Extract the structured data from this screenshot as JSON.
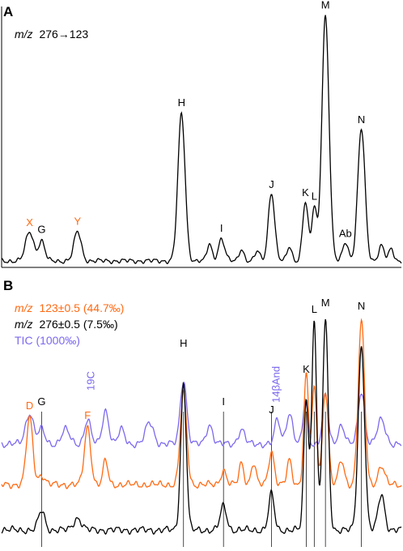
{
  "colors": {
    "black": "#000000",
    "orange": "#ff6a13",
    "purple": "#7b68ee"
  },
  "chart_data": [
    {
      "type": "line",
      "panel": "A",
      "legend": [
        {
          "prefix": "m/z",
          "text": "276→123",
          "color": "#000000"
        }
      ],
      "series": [
        {
          "color": "#000000",
          "peaks": [
            {
              "label": "X",
              "color": "#ff6a13",
              "x": 0.07,
              "h": 0.12,
              "w": 0.01
            },
            {
              "label": "G",
              "color": "#000000",
              "x": 0.1,
              "h": 0.08,
              "w": 0.008
            },
            {
              "label": "Y",
              "color": "#ff6a13",
              "x": 0.19,
              "h": 0.12,
              "w": 0.009
            },
            {
              "label": "H",
              "color": "#000000",
              "x": 0.45,
              "h": 0.6,
              "w": 0.009
            },
            {
              "label": "I",
              "color": "#000000",
              "x": 0.55,
              "h": 0.09,
              "w": 0.008
            },
            {
              "label": "J",
              "color": "#000000",
              "x": 0.675,
              "h": 0.28,
              "w": 0.008
            },
            {
              "label": "K",
              "color": "#000000",
              "x": 0.76,
              "h": 0.24,
              "w": 0.007
            },
            {
              "label": "L",
              "color": "#000000",
              "x": 0.782,
              "h": 0.22,
              "w": 0.006
            },
            {
              "label": "M",
              "color": "#000000",
              "x": 0.81,
              "h": 1.0,
              "w": 0.009
            },
            {
              "label": "Ab",
              "color": "#000000",
              "x": 0.86,
              "h": 0.08,
              "w": 0.007
            },
            {
              "label": "N",
              "color": "#000000",
              "x": 0.9,
              "h": 0.54,
              "w": 0.009
            }
          ],
          "minor": [
            {
              "x": 0.52,
              "h": 0.07,
              "w": 0.006
            },
            {
              "x": 0.6,
              "h": 0.05,
              "w": 0.006
            },
            {
              "x": 0.64,
              "h": 0.04,
              "w": 0.006
            },
            {
              "x": 0.72,
              "h": 0.06,
              "w": 0.006
            },
            {
              "x": 0.95,
              "h": 0.06,
              "w": 0.007
            },
            {
              "x": 0.975,
              "h": 0.05,
              "w": 0.006
            }
          ]
        }
      ]
    },
    {
      "type": "line",
      "panel": "B",
      "legend": [
        {
          "prefix": "m/z",
          "text": "123±0.5 (44.7‰)",
          "color": "#ff6a13"
        },
        {
          "prefix": "m/z",
          "text": "276±0.5 (7.5‰)",
          "color": "#000000"
        },
        {
          "prefix": "",
          "text": "TIC (1000‰)",
          "color": "#7b68ee"
        }
      ],
      "labels": [
        {
          "text": "D",
          "color": "#ff6a13",
          "x": 0.07
        },
        {
          "text": "G",
          "color": "#000000",
          "x": 0.1
        },
        {
          "text": "F",
          "color": "#ff6a13",
          "x": 0.215
        },
        {
          "text": "19C",
          "color": "#7b68ee",
          "x": 0.232,
          "rotated": true
        },
        {
          "text": "H",
          "color": "#000000",
          "x": 0.455
        },
        {
          "text": "I",
          "color": "#000000",
          "x": 0.555
        },
        {
          "text": "J",
          "color": "#000000",
          "x": 0.675
        },
        {
          "text": "14βAnd",
          "color": "#7b68ee",
          "x": 0.695,
          "rotated": true
        },
        {
          "text": "K",
          "color": "#000000",
          "x": 0.762
        },
        {
          "text": "L",
          "color": "#000000",
          "x": 0.782
        },
        {
          "text": "M",
          "color": "#000000",
          "x": 0.81
        },
        {
          "text": "N",
          "color": "#000000",
          "x": 0.9
        }
      ],
      "guides": [
        0.1,
        0.455,
        0.555,
        0.675,
        0.762,
        0.782,
        0.81,
        0.9
      ],
      "series": [
        {
          "color": "#7b68ee",
          "baseline": 0.38,
          "peaks": [
            {
              "x": 0.07,
              "h": 0.13,
              "w": 0.01
            },
            {
              "x": 0.1,
              "h": 0.06,
              "w": 0.008
            },
            {
              "x": 0.16,
              "h": 0.06,
              "w": 0.01
            },
            {
              "x": 0.215,
              "h": 0.1,
              "w": 0.008
            },
            {
              "x": 0.26,
              "h": 0.14,
              "w": 0.008
            },
            {
              "x": 0.3,
              "h": 0.06,
              "w": 0.008
            },
            {
              "x": 0.37,
              "h": 0.09,
              "w": 0.01
            },
            {
              "x": 0.455,
              "h": 0.27,
              "w": 0.008
            },
            {
              "x": 0.52,
              "h": 0.08,
              "w": 0.008
            },
            {
              "x": 0.6,
              "h": 0.06,
              "w": 0.008
            },
            {
              "x": 0.69,
              "h": 0.1,
              "w": 0.007
            },
            {
              "x": 0.72,
              "h": 0.13,
              "w": 0.008
            },
            {
              "x": 0.76,
              "h": 0.18,
              "w": 0.006
            },
            {
              "x": 0.81,
              "h": 0.2,
              "w": 0.007
            },
            {
              "x": 0.85,
              "h": 0.08,
              "w": 0.008
            },
            {
              "x": 0.9,
              "h": 0.22,
              "w": 0.008
            },
            {
              "x": 0.95,
              "h": 0.1,
              "w": 0.01
            }
          ]
        },
        {
          "color": "#ff6a13",
          "baseline": 0.21,
          "peaks": [
            {
              "x": 0.07,
              "h": 0.28,
              "w": 0.008
            },
            {
              "x": 0.1,
              "h": 0.04,
              "w": 0.008
            },
            {
              "x": 0.215,
              "h": 0.24,
              "w": 0.008
            },
            {
              "x": 0.26,
              "h": 0.1,
              "w": 0.006
            },
            {
              "x": 0.455,
              "h": 0.38,
              "w": 0.008
            },
            {
              "x": 0.555,
              "h": 0.06,
              "w": 0.007
            },
            {
              "x": 0.6,
              "h": 0.09,
              "w": 0.006
            },
            {
              "x": 0.63,
              "h": 0.09,
              "w": 0.006
            },
            {
              "x": 0.675,
              "h": 0.14,
              "w": 0.007
            },
            {
              "x": 0.72,
              "h": 0.1,
              "w": 0.006
            },
            {
              "x": 0.762,
              "h": 0.46,
              "w": 0.006
            },
            {
              "x": 0.782,
              "h": 0.4,
              "w": 0.006
            },
            {
              "x": 0.81,
              "h": 0.4,
              "w": 0.007
            },
            {
              "x": 0.85,
              "h": 0.1,
              "w": 0.007
            },
            {
              "x": 0.9,
              "h": 0.68,
              "w": 0.008
            },
            {
              "x": 0.95,
              "h": 0.08,
              "w": 0.008
            }
          ]
        },
        {
          "color": "#000000",
          "baseline": 0.02,
          "peaks": [
            {
              "x": 0.1,
              "h": 0.08,
              "w": 0.008
            },
            {
              "x": 0.19,
              "h": 0.05,
              "w": 0.01
            },
            {
              "x": 0.455,
              "h": 0.61,
              "w": 0.007
            },
            {
              "x": 0.555,
              "h": 0.1,
              "w": 0.008
            },
            {
              "x": 0.675,
              "h": 0.15,
              "w": 0.007
            },
            {
              "x": 0.762,
              "h": 0.55,
              "w": 0.006
            },
            {
              "x": 0.782,
              "h": 0.88,
              "w": 0.006
            },
            {
              "x": 0.81,
              "h": 0.88,
              "w": 0.007
            },
            {
              "x": 0.9,
              "h": 0.77,
              "w": 0.008
            },
            {
              "x": 0.95,
              "h": 0.15,
              "w": 0.008
            }
          ]
        }
      ]
    }
  ]
}
